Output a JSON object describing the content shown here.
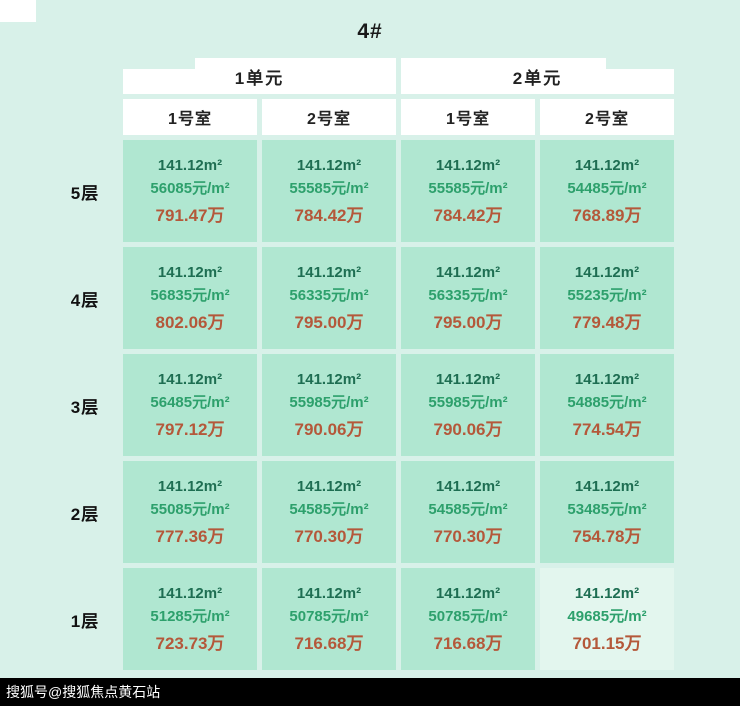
{
  "header": {
    "title": "4#"
  },
  "table": {
    "unit_headers": [
      "1单元",
      "2单元"
    ],
    "room_headers": [
      "1号室",
      "2号室",
      "1号室",
      "2号室"
    ],
    "rows": [
      {
        "floor": "5层",
        "cells": [
          {
            "area": "141.12m²",
            "price": "56085元/m²",
            "total": "791.47万"
          },
          {
            "area": "141.12m²",
            "price": "55585元/m²",
            "total": "784.42万"
          },
          {
            "area": "141.12m²",
            "price": "55585元/m²",
            "total": "784.42万"
          },
          {
            "area": "141.12m²",
            "price": "54485元/m²",
            "total": "768.89万"
          }
        ]
      },
      {
        "floor": "4层",
        "cells": [
          {
            "area": "141.12m²",
            "price": "56835元/m²",
            "total": "802.06万"
          },
          {
            "area": "141.12m²",
            "price": "56335元/m²",
            "total": "795.00万"
          },
          {
            "area": "141.12m²",
            "price": "56335元/m²",
            "total": "795.00万"
          },
          {
            "area": "141.12m²",
            "price": "55235元/m²",
            "total": "779.48万"
          }
        ]
      },
      {
        "floor": "3层",
        "cells": [
          {
            "area": "141.12m²",
            "price": "56485元/m²",
            "total": "797.12万"
          },
          {
            "area": "141.12m²",
            "price": "55985元/m²",
            "total": "790.06万"
          },
          {
            "area": "141.12m²",
            "price": "55985元/m²",
            "total": "790.06万"
          },
          {
            "area": "141.12m²",
            "price": "54885元/m²",
            "total": "774.54万"
          }
        ]
      },
      {
        "floor": "2层",
        "cells": [
          {
            "area": "141.12m²",
            "price": "55085元/m²",
            "total": "777.36万"
          },
          {
            "area": "141.12m²",
            "price": "54585元/m²",
            "total": "770.30万"
          },
          {
            "area": "141.12m²",
            "price": "54585元/m²",
            "total": "770.30万"
          },
          {
            "area": "141.12m²",
            "price": "53485元/m²",
            "total": "754.78万"
          }
        ]
      },
      {
        "floor": "1层",
        "cells": [
          {
            "area": "141.12m²",
            "price": "51285元/m²",
            "total": "723.73万"
          },
          {
            "area": "141.12m²",
            "price": "50785元/m²",
            "total": "716.68万"
          },
          {
            "area": "141.12m²",
            "price": "50785元/m²",
            "total": "716.68万"
          },
          {
            "area": "141.12m²",
            "price": "49685元/m²",
            "total": "701.15万"
          }
        ]
      }
    ]
  },
  "footer": {
    "watermark": "搜狐号@搜狐焦点黄石站"
  },
  "colors": {
    "page_bg": "#d8f1e9",
    "cell_bg": "#b0e7d1",
    "header_bg": "#ffffff",
    "area_text": "#1e6e52",
    "unit_price_text": "#2da06c",
    "total_price_text": "#b4583a",
    "footer_bg": "#000000",
    "footer_text": "#ffffff"
  },
  "chart_data": {
    "type": "table",
    "title": "4#",
    "column_groups": [
      "1单元",
      "1单元",
      "2单元",
      "2单元"
    ],
    "columns": [
      "1号室",
      "2号室",
      "1号室",
      "2号室"
    ],
    "row_labels": [
      "5层",
      "4层",
      "3层",
      "2层",
      "1层"
    ],
    "area_m2": 141.12,
    "unit_price_yuan_per_m2": [
      [
        56085,
        55585,
        55585,
        54485
      ],
      [
        56835,
        56335,
        56335,
        55235
      ],
      [
        56485,
        55985,
        55985,
        54885
      ],
      [
        55085,
        54585,
        54585,
        53485
      ],
      [
        51285,
        50785,
        50785,
        49685
      ]
    ],
    "total_price_wan": [
      [
        791.47,
        784.42,
        784.42,
        768.89
      ],
      [
        802.06,
        795.0,
        795.0,
        779.48
      ],
      [
        797.12,
        790.06,
        790.06,
        774.54
      ],
      [
        777.36,
        770.3,
        770.3,
        754.78
      ],
      [
        723.73,
        716.68,
        716.68,
        701.15
      ]
    ]
  }
}
